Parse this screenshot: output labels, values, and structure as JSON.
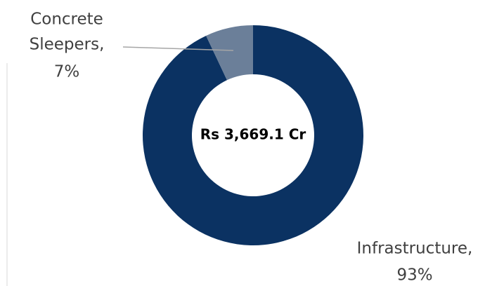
{
  "chart_data": {
    "type": "donut",
    "center_text": "Rs 3,669.1 Cr",
    "labels": [
      [
        "Infrastructure,",
        "93%"
      ],
      [
        "Concrete",
        "Sleepers,",
        "7%"
      ]
    ],
    "values": [
      93,
      7
    ],
    "colors": [
      "#0b3262",
      "#6b7f99"
    ]
  }
}
